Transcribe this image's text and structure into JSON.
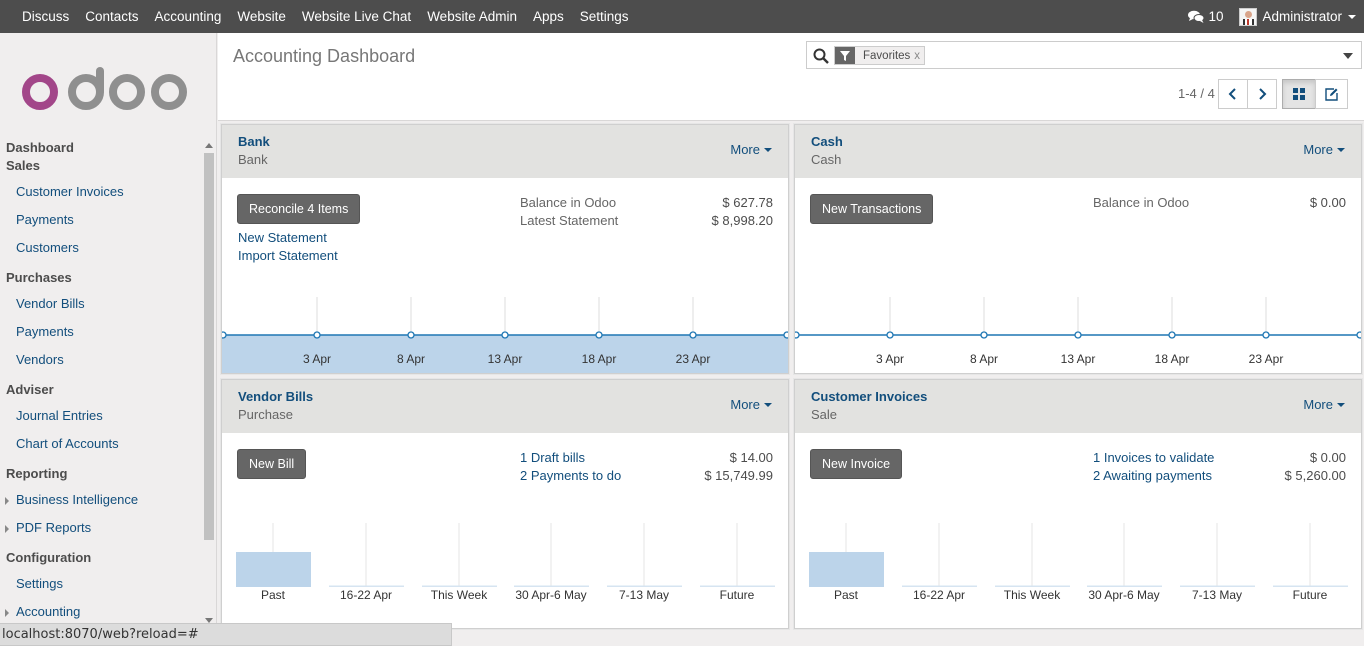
{
  "topbar": {
    "menu": [
      "Discuss",
      "Contacts",
      "Accounting",
      "Website",
      "Website Live Chat",
      "Website Admin",
      "Apps",
      "Settings"
    ],
    "messages_count": "10",
    "user_name": "Administrator"
  },
  "sidebar": {
    "dashboard": "Dashboard",
    "sales": {
      "title": "Sales",
      "items": [
        "Customer Invoices",
        "Payments",
        "Customers"
      ]
    },
    "purchases": {
      "title": "Purchases",
      "items": [
        "Vendor Bills",
        "Payments",
        "Vendors"
      ]
    },
    "adviser": {
      "title": "Adviser",
      "items": [
        "Journal Entries",
        "Chart of Accounts"
      ]
    },
    "reporting": {
      "title": "Reporting",
      "items": [
        "Business Intelligence",
        "PDF Reports"
      ]
    },
    "configuration": {
      "title": "Configuration",
      "items": [
        "Settings",
        "Accounting"
      ]
    }
  },
  "control": {
    "breadcrumb": "Accounting Dashboard",
    "search_facet": "Favorites",
    "search_facet_remove": "x",
    "pager": "1-4 / 4"
  },
  "cards": {
    "bank": {
      "title": "Bank",
      "subtitle": "Bank",
      "more": "More",
      "button": "Reconcile 4 Items",
      "links": [
        "New Statement",
        "Import Statement"
      ],
      "balance_label": "Balance in Odoo",
      "balance_value": "$ 627.78",
      "statement_label": "Latest Statement",
      "statement_value": "$ 8,998.20",
      "x_ticks": [
        "3 Apr",
        "8 Apr",
        "13 Apr",
        "18 Apr",
        "23 Apr"
      ]
    },
    "cash": {
      "title": "Cash",
      "subtitle": "Cash",
      "more": "More",
      "button": "New Transactions",
      "balance_label": "Balance in Odoo",
      "balance_value": "$ 0.00",
      "x_ticks": [
        "3 Apr",
        "8 Apr",
        "13 Apr",
        "18 Apr",
        "23 Apr"
      ]
    },
    "vendor": {
      "title": "Vendor Bills",
      "subtitle": "Purchase",
      "more": "More",
      "button": "New Bill",
      "line1_label": "1 Draft bills",
      "line1_value": "$ 14.00",
      "line2_label": "2 Payments to do",
      "line2_value": "$ 15,749.99",
      "bars": [
        "Past",
        "16-22 Apr",
        "This Week",
        "30 Apr-6 May",
        "7-13 May",
        "Future"
      ]
    },
    "customer": {
      "title": "Customer Invoices",
      "subtitle": "Sale",
      "more": "More",
      "button": "New Invoice",
      "line1_label": "1 Invoices to validate",
      "line1_value": "$ 0.00",
      "line2_label": "2 Awaiting payments",
      "line2_value": "$ 5,260.00",
      "bars": [
        "Past",
        "16-22 Apr",
        "This Week",
        "30 Apr-6 May",
        "7-13 May",
        "Future"
      ]
    }
  },
  "statusbar": "localhost:8070/web?reload=#"
}
